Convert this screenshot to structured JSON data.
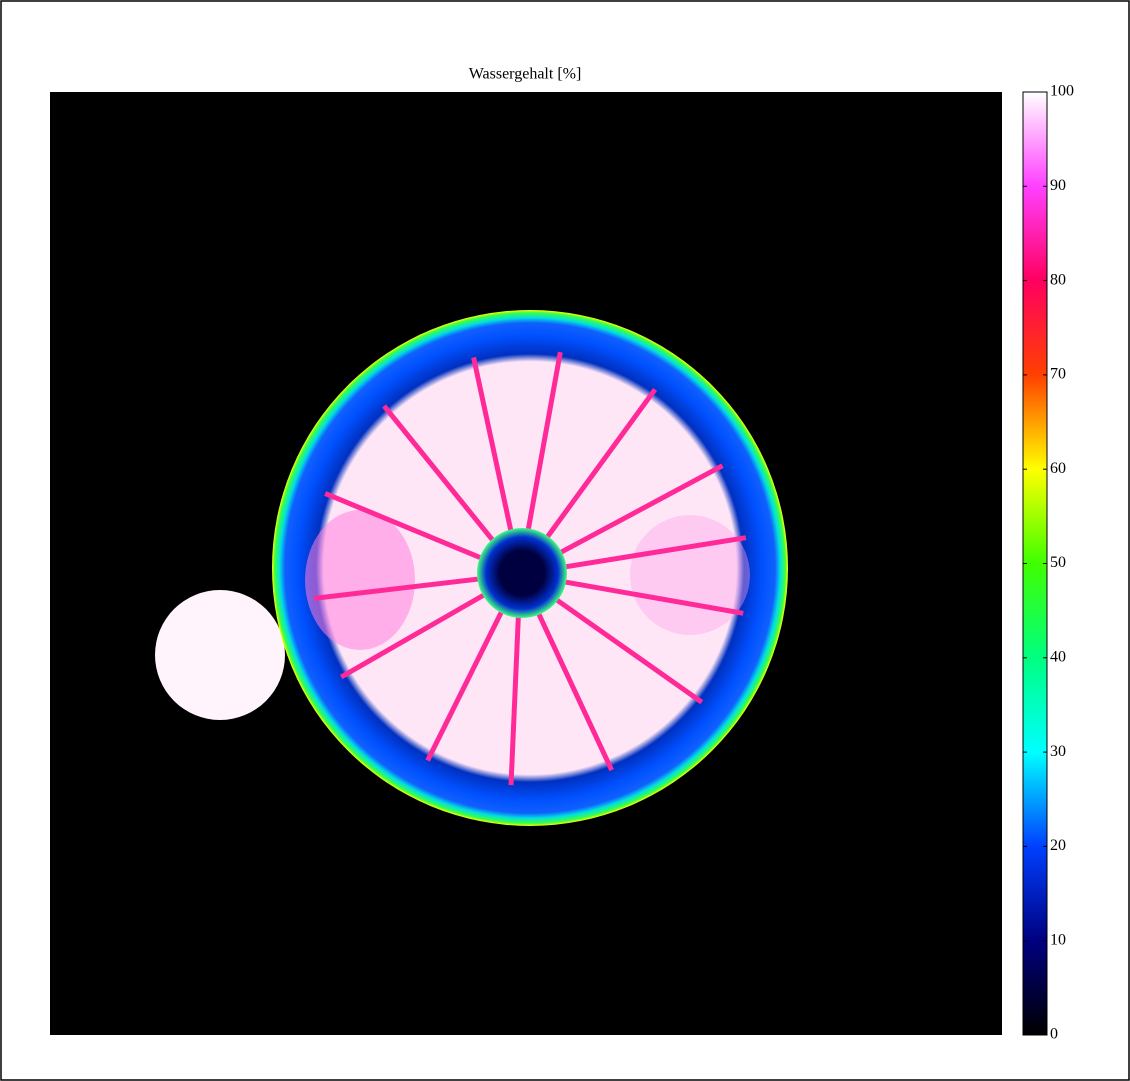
{
  "chart_data": {
    "type": "image",
    "title": "Wassergehalt [%]",
    "clim": [
      0,
      100
    ],
    "cticks": [
      0,
      10,
      20,
      30,
      40,
      50,
      60,
      70,
      80,
      90,
      100
    ],
    "colormap": [
      "#000000",
      "#000080",
      "#0040ff",
      "#00ffff",
      "#00ff80",
      "#40ff00",
      "#ffff00",
      "#ff4000",
      "#ff0060",
      "#ff40ff",
      "#ffffff"
    ]
  }
}
